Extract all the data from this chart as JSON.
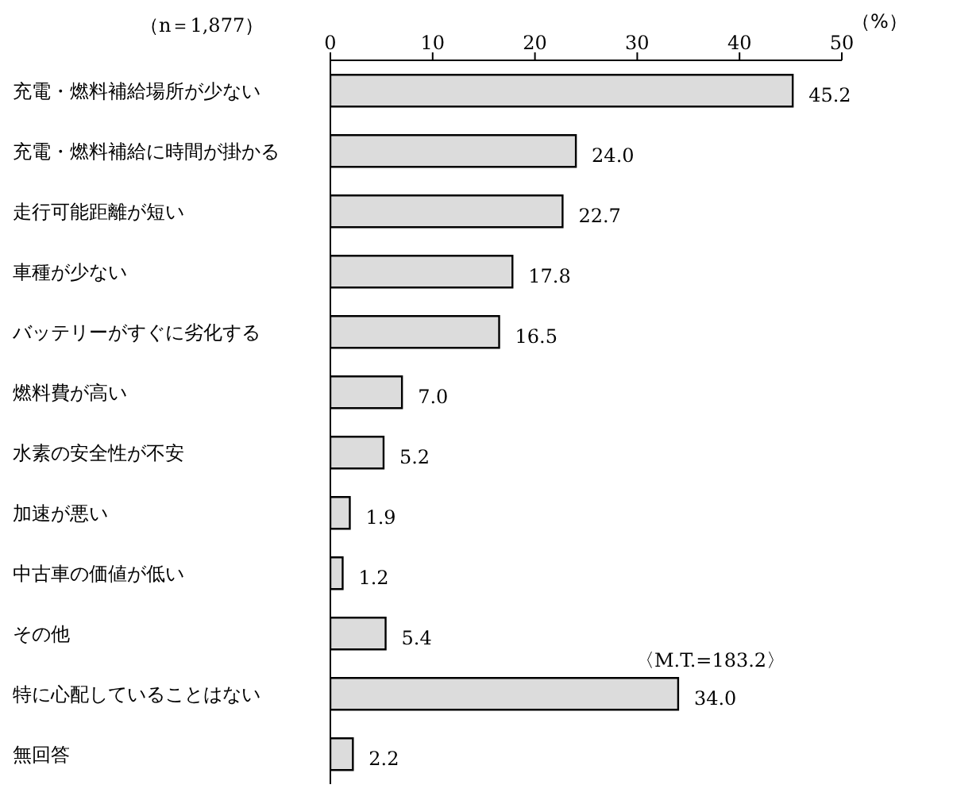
{
  "chart_data": {
    "type": "bar",
    "orientation": "horizontal",
    "subtitle": "（n＝1,877）",
    "xlabel": "（%）",
    "annotations": [
      "〈M.T.=183.2〉"
    ],
    "categories": [
      "充電・燃料補給場所が少ない",
      "充電・燃料補給に時間が掛かる",
      "走行可能距離が短い",
      "車種が少ない",
      "バッテリーがすぐに劣化する",
      "燃料費が高い",
      "水素の安全性が不安",
      "加速が悪い",
      "中古車の価値が低い",
      "その他",
      "特に心配していることはない",
      "無回答"
    ],
    "values": [
      45.2,
      24.0,
      22.7,
      17.8,
      16.5,
      7.0,
      5.2,
      1.9,
      1.2,
      5.4,
      34.0,
      2.2
    ],
    "value_labels": [
      "45.2",
      "24.0",
      "22.7",
      "17.8",
      "16.5",
      "7.0",
      "5.2",
      "1.9",
      "1.2",
      "5.4",
      "34.0",
      "2.2"
    ],
    "color": "#dcdcdc",
    "xlim": [
      0,
      50
    ],
    "xticks": [
      0,
      10,
      20,
      30,
      40,
      50
    ],
    "grid": false
  }
}
